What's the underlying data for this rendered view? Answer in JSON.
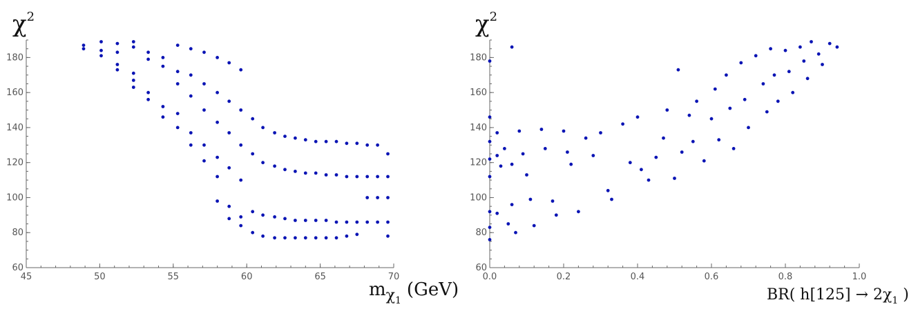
{
  "chart_data": [
    {
      "type": "scatter",
      "ylabel": "χ",
      "ylabel_sup": "2",
      "xlabel_main": "m",
      "xlabel_sub": "χ",
      "xlabel_subsub": "1",
      "xlabel_unit": "(GeV)",
      "xlim": [
        45,
        70
      ],
      "ylim": [
        60,
        190
      ],
      "xticks": [
        "45",
        "50",
        "55",
        "60",
        "65",
        "70"
      ],
      "yticks": [
        "60",
        "80",
        "100",
        "120",
        "140",
        "160",
        "180"
      ],
      "marker_color": "#0a14b4",
      "series": [
        {
          "name": "points",
          "points": [
            [
              48.9,
              187
            ],
            [
              48.9,
              185
            ],
            [
              50.1,
              189
            ],
            [
              50.1,
              184
            ],
            [
              50.1,
              181
            ],
            [
              51.2,
              188
            ],
            [
              51.2,
              183
            ],
            [
              51.2,
              176
            ],
            [
              51.2,
              173
            ],
            [
              52.3,
              189
            ],
            [
              52.3,
              186
            ],
            [
              52.3,
              171
            ],
            [
              52.3,
              167
            ],
            [
              52.3,
              163
            ],
            [
              53.3,
              183
            ],
            [
              53.3,
              179
            ],
            [
              53.3,
              160
            ],
            [
              53.3,
              156
            ],
            [
              54.3,
              180
            ],
            [
              54.3,
              175
            ],
            [
              54.3,
              152
            ],
            [
              54.3,
              146
            ],
            [
              55.3,
              187
            ],
            [
              55.3,
              172
            ],
            [
              55.3,
              165
            ],
            [
              55.3,
              148
            ],
            [
              55.3,
              140
            ],
            [
              56.2,
              185
            ],
            [
              56.2,
              170
            ],
            [
              56.2,
              158
            ],
            [
              56.2,
              137
            ],
            [
              56.2,
              130
            ],
            [
              57.1,
              183
            ],
            [
              57.1,
              165
            ],
            [
              57.1,
              150
            ],
            [
              57.1,
              130
            ],
            [
              57.1,
              121
            ],
            [
              58.0,
              180
            ],
            [
              58.0,
              160
            ],
            [
              58.0,
              143
            ],
            [
              58.0,
              123
            ],
            [
              58.0,
              112
            ],
            [
              58.0,
              98
            ],
            [
              58.8,
              177
            ],
            [
              58.8,
              155
            ],
            [
              58.8,
              137
            ],
            [
              58.8,
              117
            ],
            [
              58.8,
              95
            ],
            [
              58.8,
              88
            ],
            [
              59.6,
              173
            ],
            [
              59.6,
              150
            ],
            [
              59.6,
              130
            ],
            [
              59.6,
              110
            ],
            [
              59.6,
              89
            ],
            [
              59.6,
              84
            ],
            [
              60.4,
              145
            ],
            [
              60.4,
              125
            ],
            [
              60.4,
              92
            ],
            [
              60.4,
              80
            ],
            [
              61.1,
              140
            ],
            [
              61.1,
              120
            ],
            [
              61.1,
              90
            ],
            [
              61.1,
              78
            ],
            [
              61.9,
              137
            ],
            [
              61.9,
              118
            ],
            [
              61.9,
              89
            ],
            [
              61.9,
              77
            ],
            [
              62.6,
              135
            ],
            [
              62.6,
              116
            ],
            [
              62.6,
              88
            ],
            [
              62.6,
              77
            ],
            [
              63.3,
              134
            ],
            [
              63.3,
              115
            ],
            [
              63.3,
              87
            ],
            [
              63.3,
              77
            ],
            [
              64.0,
              133
            ],
            [
              64.0,
              114
            ],
            [
              64.0,
              87
            ],
            [
              64.0,
              77
            ],
            [
              64.7,
              132
            ],
            [
              64.7,
              114
            ],
            [
              64.7,
              87
            ],
            [
              64.7,
              77
            ],
            [
              65.4,
              132
            ],
            [
              65.4,
              113
            ],
            [
              65.4,
              87
            ],
            [
              65.4,
              77
            ],
            [
              66.1,
              132
            ],
            [
              66.1,
              113
            ],
            [
              66.1,
              86
            ],
            [
              66.1,
              77
            ],
            [
              66.8,
              131
            ],
            [
              66.8,
              112
            ],
            [
              66.8,
              86
            ],
            [
              66.8,
              78
            ],
            [
              67.5,
              131
            ],
            [
              67.5,
              112
            ],
            [
              67.5,
              86
            ],
            [
              67.5,
              79
            ],
            [
              68.2,
              130
            ],
            [
              68.2,
              112
            ],
            [
              68.2,
              100
            ],
            [
              68.2,
              86
            ],
            [
              68.9,
              130
            ],
            [
              68.9,
              112
            ],
            [
              68.9,
              100
            ],
            [
              68.9,
              86
            ],
            [
              69.6,
              125
            ],
            [
              69.6,
              112
            ],
            [
              69.6,
              100
            ],
            [
              69.6,
              86
            ],
            [
              69.6,
              78
            ]
          ]
        }
      ]
    },
    {
      "type": "scatter",
      "ylabel": "χ",
      "ylabel_sup": "2",
      "xlabel_main": "BR( h[125] → 2χ",
      "xlabel_sub": "1",
      "xlabel_end": " )",
      "xlim": [
        0.0,
        1.0
      ],
      "ylim": [
        60,
        190
      ],
      "xticks": [
        "0.0",
        "0.2",
        "0.4",
        "0.6",
        "0.8",
        "1.0"
      ],
      "yticks": [
        "60",
        "80",
        "100",
        "120",
        "140",
        "160",
        "180"
      ],
      "marker_color": "#0a14b4",
      "series": [
        {
          "name": "points",
          "points": [
            [
              0.0,
              178
            ],
            [
              0.0,
              146
            ],
            [
              0.0,
              132
            ],
            [
              0.0,
              122
            ],
            [
              0.0,
              112
            ],
            [
              0.0,
              92
            ],
            [
              0.0,
              83
            ],
            [
              0.0,
              76
            ],
            [
              0.06,
              186
            ],
            [
              0.02,
              137
            ],
            [
              0.02,
              124
            ],
            [
              0.02,
              91
            ],
            [
              0.03,
              118
            ],
            [
              0.04,
              128
            ],
            [
              0.05,
              85
            ],
            [
              0.06,
              119
            ],
            [
              0.06,
              96
            ],
            [
              0.07,
              80
            ],
            [
              0.08,
              138
            ],
            [
              0.09,
              125
            ],
            [
              0.1,
              113
            ],
            [
              0.11,
              99
            ],
            [
              0.12,
              84
            ],
            [
              0.14,
              139
            ],
            [
              0.15,
              128
            ],
            [
              0.17,
              98
            ],
            [
              0.18,
              90
            ],
            [
              0.2,
              138
            ],
            [
              0.21,
              126
            ],
            [
              0.22,
              119
            ],
            [
              0.24,
              92
            ],
            [
              0.26,
              134
            ],
            [
              0.28,
              124
            ],
            [
              0.3,
              137
            ],
            [
              0.32,
              104
            ],
            [
              0.33,
              99
            ],
            [
              0.36,
              142
            ],
            [
              0.38,
              120
            ],
            [
              0.4,
              146
            ],
            [
              0.41,
              116
            ],
            [
              0.43,
              110
            ],
            [
              0.45,
              123
            ],
            [
              0.47,
              134
            ],
            [
              0.48,
              150
            ],
            [
              0.5,
              111
            ],
            [
              0.51,
              173
            ],
            [
              0.52,
              126
            ],
            [
              0.54,
              147
            ],
            [
              0.55,
              132
            ],
            [
              0.56,
              155
            ],
            [
              0.58,
              121
            ],
            [
              0.6,
              145
            ],
            [
              0.61,
              162
            ],
            [
              0.62,
              133
            ],
            [
              0.64,
              170
            ],
            [
              0.65,
              151
            ],
            [
              0.66,
              128
            ],
            [
              0.68,
              177
            ],
            [
              0.69,
              156
            ],
            [
              0.7,
              140
            ],
            [
              0.72,
              181
            ],
            [
              0.74,
              165
            ],
            [
              0.75,
              149
            ],
            [
              0.76,
              185
            ],
            [
              0.77,
              170
            ],
            [
              0.78,
              155
            ],
            [
              0.8,
              184
            ],
            [
              0.81,
              172
            ],
            [
              0.82,
              160
            ],
            [
              0.84,
              186
            ],
            [
              0.85,
              178
            ],
            [
              0.86,
              168
            ],
            [
              0.87,
              189
            ],
            [
              0.89,
              182
            ],
            [
              0.9,
              176
            ],
            [
              0.92,
              188
            ],
            [
              0.94,
              186
            ]
          ]
        }
      ]
    }
  ]
}
